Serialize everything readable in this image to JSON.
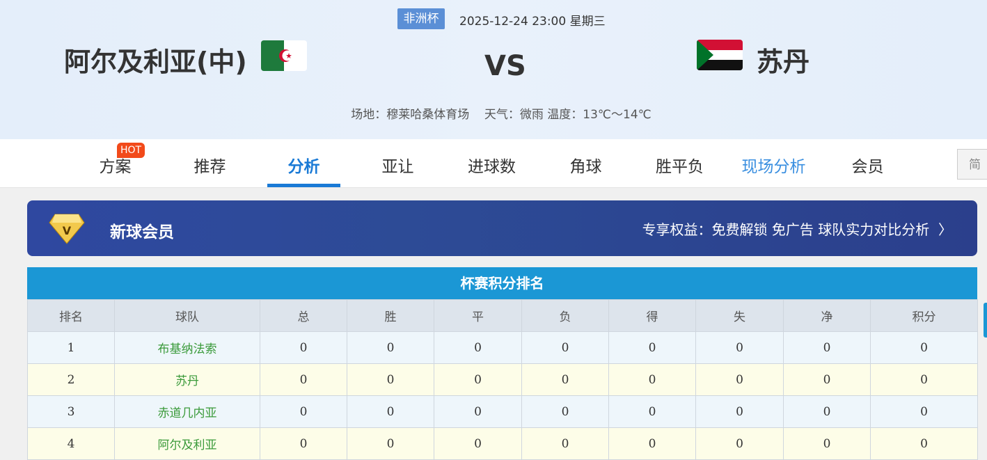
{
  "match": {
    "competition": "非洲杯",
    "datetime": "2025-12-24 23:00 星期三",
    "home": "阿尔及利亚(中)",
    "vs": "VS",
    "away": "苏丹",
    "venue": "场地：穆莱哈桑体育场",
    "weather": "天气：微雨 温度：13℃～14℃"
  },
  "nav": {
    "tabs": [
      "方案",
      "推荐",
      "分析",
      "亚让",
      "进球数",
      "角球",
      "胜平负",
      "现场分析",
      "会员"
    ],
    "active": "分析",
    "hot_badge": "HOT",
    "lang_button": "简"
  },
  "banner": {
    "title": "新球会员",
    "benefits": "专享权益：免费解锁 免广告 球队实力对比分析",
    "icon": "diamond-v-icon"
  },
  "standings": {
    "title": "杯赛积分排名",
    "columns": [
      "排名",
      "球队",
      "总",
      "胜",
      "平",
      "负",
      "得",
      "失",
      "净",
      "积分"
    ],
    "rows": [
      [
        "1",
        "布基纳法索",
        "0",
        "0",
        "0",
        "0",
        "0",
        "0",
        "0",
        "0"
      ],
      [
        "2",
        "苏丹",
        "0",
        "0",
        "0",
        "0",
        "0",
        "0",
        "0",
        "0"
      ],
      [
        "3",
        "赤道几内亚",
        "0",
        "0",
        "0",
        "0",
        "0",
        "0",
        "0",
        "0"
      ],
      [
        "4",
        "阿尔及利亚",
        "0",
        "0",
        "0",
        "0",
        "0",
        "0",
        "0",
        "0"
      ]
    ]
  },
  "colors": {
    "accent": "#1a7ad6",
    "table_header": "#1b97d5",
    "team_name": "#3a9a3a"
  }
}
